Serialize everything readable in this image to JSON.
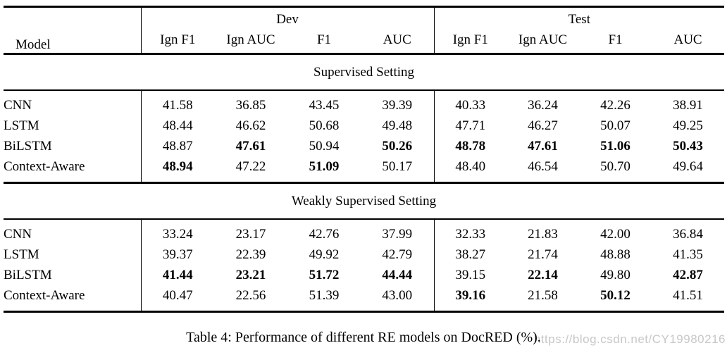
{
  "table": {
    "header": {
      "model": "Model",
      "dev": "Dev",
      "test": "Test",
      "subcols": [
        "Ign F1",
        "Ign AUC",
        "F1",
        "AUC",
        "Ign F1",
        "Ign AUC",
        "F1",
        "AUC"
      ]
    },
    "sections": [
      {
        "title": "Supervised Setting",
        "rows": [
          {
            "model": "CNN",
            "values": [
              "41.58",
              "36.85",
              "43.45",
              "39.39",
              "40.33",
              "36.24",
              "42.26",
              "38.91"
            ],
            "bold": []
          },
          {
            "model": "LSTM",
            "values": [
              "48.44",
              "46.62",
              "50.68",
              "49.48",
              "47.71",
              "46.27",
              "50.07",
              "49.25"
            ],
            "bold": []
          },
          {
            "model": "BiLSTM",
            "values": [
              "48.87",
              "47.61",
              "50.94",
              "50.26",
              "48.78",
              "47.61",
              "51.06",
              "50.43"
            ],
            "bold": [
              1,
              3,
              4,
              5,
              6,
              7
            ]
          },
          {
            "model": "Context-Aware",
            "values": [
              "48.94",
              "47.22",
              "51.09",
              "50.17",
              "48.40",
              "46.54",
              "50.70",
              "49.64"
            ],
            "bold": [
              0,
              2
            ]
          }
        ]
      },
      {
        "title": "Weakly Supervised Setting",
        "rows": [
          {
            "model": "CNN",
            "values": [
              "33.24",
              "23.17",
              "42.76",
              "37.99",
              "32.33",
              "21.83",
              "42.00",
              "36.84"
            ],
            "bold": []
          },
          {
            "model": "LSTM",
            "values": [
              "39.37",
              "22.39",
              "49.92",
              "42.79",
              "38.27",
              "21.74",
              "48.88",
              "41.35"
            ],
            "bold": []
          },
          {
            "model": "BiLSTM",
            "values": [
              "41.44",
              "23.21",
              "51.72",
              "44.44",
              "39.15",
              "22.14",
              "49.80",
              "42.87"
            ],
            "bold": [
              0,
              1,
              2,
              3,
              5,
              7
            ]
          },
          {
            "model": "Context-Aware",
            "values": [
              "40.47",
              "22.56",
              "51.39",
              "43.00",
              "39.16",
              "21.58",
              "50.12",
              "41.51"
            ],
            "bold": [
              4,
              6
            ]
          }
        ]
      }
    ]
  },
  "caption": "Table 4: Performance of different RE models on DocRED (%).",
  "watermark": "https://blog.csdn.net/CY19980216"
}
